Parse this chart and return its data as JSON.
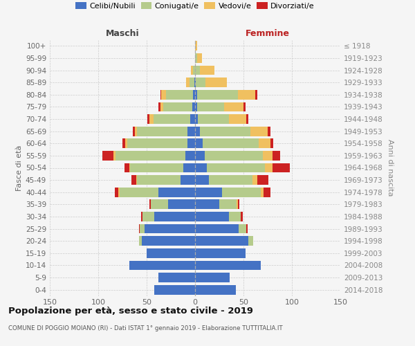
{
  "age_groups": [
    "0-4",
    "5-9",
    "10-14",
    "15-19",
    "20-24",
    "25-29",
    "30-34",
    "35-39",
    "40-44",
    "45-49",
    "50-54",
    "55-59",
    "60-64",
    "65-69",
    "70-74",
    "75-79",
    "80-84",
    "85-89",
    "90-94",
    "95-99",
    "100+"
  ],
  "birth_years": [
    "2014-2018",
    "2009-2013",
    "2004-2008",
    "1999-2003",
    "1994-1998",
    "1989-1993",
    "1984-1988",
    "1979-1983",
    "1974-1978",
    "1969-1973",
    "1964-1968",
    "1959-1963",
    "1954-1958",
    "1949-1953",
    "1944-1948",
    "1939-1943",
    "1934-1938",
    "1929-1933",
    "1924-1928",
    "1919-1923",
    "≤ 1918"
  ],
  "colors": {
    "celibi": "#4472c4",
    "coniugati": "#b5cb8b",
    "vedovi": "#f0c060",
    "divorziati": "#cc2222"
  },
  "maschi": {
    "celibi": [
      42,
      38,
      68,
      50,
      55,
      52,
      42,
      28,
      38,
      15,
      12,
      10,
      8,
      8,
      5,
      3,
      2,
      1,
      0,
      0,
      0
    ],
    "coniugati": [
      0,
      0,
      0,
      0,
      3,
      5,
      12,
      18,
      40,
      45,
      55,
      72,
      62,
      52,
      38,
      30,
      28,
      5,
      2,
      0,
      0
    ],
    "vedovi": [
      0,
      0,
      0,
      0,
      0,
      0,
      0,
      0,
      1,
      1,
      1,
      2,
      2,
      2,
      4,
      3,
      5,
      3,
      2,
      0,
      0
    ],
    "divorziati": [
      0,
      0,
      0,
      0,
      0,
      1,
      2,
      1,
      4,
      5,
      5,
      12,
      3,
      2,
      2,
      2,
      1,
      0,
      0,
      0,
      0
    ]
  },
  "femmine": {
    "celibi": [
      42,
      36,
      68,
      52,
      55,
      45,
      35,
      25,
      28,
      14,
      12,
      10,
      8,
      5,
      3,
      2,
      2,
      1,
      0,
      0,
      0
    ],
    "coniugati": [
      0,
      0,
      0,
      0,
      5,
      8,
      12,
      18,
      40,
      45,
      60,
      60,
      58,
      52,
      32,
      28,
      42,
      10,
      5,
      2,
      0
    ],
    "vedovi": [
      0,
      0,
      0,
      0,
      0,
      0,
      0,
      1,
      3,
      5,
      8,
      10,
      12,
      18,
      18,
      20,
      18,
      22,
      15,
      5,
      2
    ],
    "divorziati": [
      0,
      0,
      0,
      0,
      0,
      1,
      2,
      2,
      7,
      12,
      18,
      8,
      3,
      3,
      2,
      2,
      2,
      0,
      0,
      0,
      0
    ]
  },
  "title": "Popolazione per età, sesso e stato civile - 2019",
  "subtitle": "COMUNE DI POGGIO MOIANO (RI) - Dati ISTAT 1° gennaio 2019 - Elaborazione TUTTITALIA.IT",
  "xlabel_left": "Maschi",
  "xlabel_right": "Femmine",
  "ylabel_left": "Fasce di età",
  "ylabel_right": "Anni di nascita",
  "xlim": 150,
  "bg_color": "#f5f5f5",
  "grid_color": "#cccccc"
}
